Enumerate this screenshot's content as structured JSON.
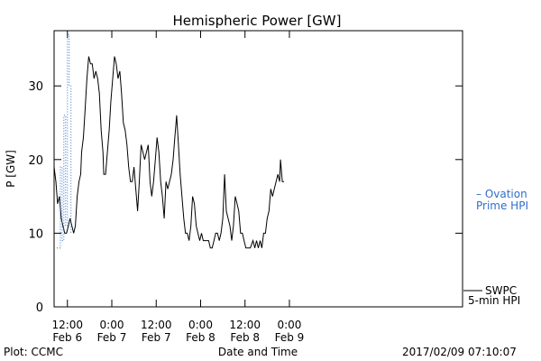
{
  "chart_data": {
    "type": "line",
    "title": "Hemispheric Power [GW]",
    "xlabel": "Date and Time",
    "ylabel": "P [GW]",
    "ylim": [
      0,
      37.5
    ],
    "xlim": [
      5.35,
      9.95
    ],
    "x_unit": "days (Feb 2017)",
    "y_ticks": [
      0,
      10,
      20,
      30
    ],
    "x_ticks": [
      {
        "x": 5.5,
        "time": "12:00",
        "date": "Feb 6"
      },
      {
        "x": 6.0,
        "time": "0:00",
        "date": "Feb 7"
      },
      {
        "x": 6.5,
        "time": "12:00",
        "date": "Feb 7"
      },
      {
        "x": 7.0,
        "time": "0:00",
        "date": "Feb 8"
      },
      {
        "x": 7.5,
        "time": "12:00",
        "date": "Feb 8"
      },
      {
        "x": 8.0,
        "time": "0:00",
        "date": "Feb 9"
      }
    ],
    "series": [
      {
        "name": "SWPC 5-min HPI",
        "color": "#000000",
        "style": "solid",
        "points": [
          [
            5.35,
            19
          ],
          [
            5.37,
            17
          ],
          [
            5.39,
            14
          ],
          [
            5.41,
            15
          ],
          [
            5.43,
            12
          ],
          [
            5.45,
            11
          ],
          [
            5.47,
            10
          ],
          [
            5.49,
            10
          ],
          [
            5.51,
            11
          ],
          [
            5.53,
            12
          ],
          [
            5.55,
            11
          ],
          [
            5.57,
            10
          ],
          [
            5.59,
            11
          ],
          [
            5.61,
            15
          ],
          [
            5.63,
            17
          ],
          [
            5.65,
            18
          ],
          [
            5.66,
            21
          ],
          [
            5.68,
            23
          ],
          [
            5.7,
            27
          ],
          [
            5.72,
            31
          ],
          [
            5.74,
            34
          ],
          [
            5.76,
            33
          ],
          [
            5.78,
            33
          ],
          [
            5.8,
            31
          ],
          [
            5.82,
            32
          ],
          [
            5.84,
            31
          ],
          [
            5.86,
            29
          ],
          [
            5.88,
            24
          ],
          [
            5.9,
            21
          ],
          [
            5.91,
            18
          ],
          [
            5.93,
            18
          ],
          [
            5.95,
            21
          ],
          [
            5.97,
            24
          ],
          [
            5.99,
            28
          ],
          [
            6.01,
            31
          ],
          [
            6.03,
            34
          ],
          [
            6.05,
            33
          ],
          [
            6.07,
            31
          ],
          [
            6.09,
            32
          ],
          [
            6.11,
            29
          ],
          [
            6.13,
            25
          ],
          [
            6.15,
            24
          ],
          [
            6.17,
            22
          ],
          [
            6.19,
            19
          ],
          [
            6.21,
            17
          ],
          [
            6.23,
            17
          ],
          [
            6.25,
            19
          ],
          [
            6.27,
            16
          ],
          [
            6.29,
            13
          ],
          [
            6.31,
            17
          ],
          [
            6.33,
            22
          ],
          [
            6.35,
            21
          ],
          [
            6.37,
            20
          ],
          [
            6.39,
            21
          ],
          [
            6.41,
            22
          ],
          [
            6.43,
            17
          ],
          [
            6.45,
            15
          ],
          [
            6.47,
            17
          ],
          [
            6.49,
            20
          ],
          [
            6.51,
            23
          ],
          [
            6.53,
            21
          ],
          [
            6.55,
            17
          ],
          [
            6.57,
            15
          ],
          [
            6.59,
            12
          ],
          [
            6.61,
            17
          ],
          [
            6.63,
            16
          ],
          [
            6.65,
            17
          ],
          [
            6.67,
            18
          ],
          [
            6.69,
            20
          ],
          [
            6.71,
            23
          ],
          [
            6.73,
            26
          ],
          [
            6.75,
            22
          ],
          [
            6.77,
            18
          ],
          [
            6.79,
            15
          ],
          [
            6.81,
            12
          ],
          [
            6.83,
            10
          ],
          [
            6.85,
            10
          ],
          [
            6.87,
            9
          ],
          [
            6.89,
            11
          ],
          [
            6.91,
            15
          ],
          [
            6.93,
            14
          ],
          [
            6.95,
            11
          ],
          [
            6.97,
            10
          ],
          [
            6.99,
            9
          ],
          [
            7.01,
            10
          ],
          [
            7.03,
            9
          ],
          [
            7.06,
            9
          ],
          [
            7.09,
            9
          ],
          [
            7.11,
            8
          ],
          [
            7.13,
            8
          ],
          [
            7.15,
            9
          ],
          [
            7.17,
            10
          ],
          [
            7.19,
            10
          ],
          [
            7.21,
            9
          ],
          [
            7.23,
            10
          ],
          [
            7.25,
            12
          ],
          [
            7.27,
            18
          ],
          [
            7.29,
            13
          ],
          [
            7.31,
            12
          ],
          [
            7.33,
            11
          ],
          [
            7.35,
            9
          ],
          [
            7.37,
            11
          ],
          [
            7.39,
            15
          ],
          [
            7.41,
            14
          ],
          [
            7.43,
            13
          ],
          [
            7.45,
            10
          ],
          [
            7.47,
            10
          ],
          [
            7.49,
            9
          ],
          [
            7.51,
            8
          ],
          [
            7.53,
            8
          ],
          [
            7.56,
            8
          ],
          [
            7.59,
            9
          ],
          [
            7.61,
            8
          ],
          [
            7.63,
            9
          ],
          [
            7.65,
            8
          ],
          [
            7.67,
            9
          ],
          [
            7.69,
            8
          ],
          [
            7.71,
            10
          ],
          [
            7.73,
            10
          ],
          [
            7.75,
            12
          ],
          [
            7.77,
            13
          ],
          [
            7.79,
            16
          ],
          [
            7.81,
            15
          ],
          [
            7.83,
            16
          ],
          [
            7.85,
            17
          ],
          [
            7.87,
            18
          ],
          [
            7.89,
            17
          ],
          [
            7.9,
            20
          ],
          [
            7.92,
            17
          ],
          [
            7.94,
            17
          ]
        ]
      },
      {
        "name": "Ovation Prime HPI",
        "color": "#2f6fc9",
        "style": "dotted",
        "points": [
          [
            5.38,
            8
          ],
          [
            5.42,
            8
          ],
          [
            5.42,
            19
          ],
          [
            5.44,
            19
          ],
          [
            5.44,
            9
          ],
          [
            5.46,
            9
          ],
          [
            5.46,
            26
          ],
          [
            5.48,
            26
          ],
          [
            5.48,
            11
          ],
          [
            5.5,
            11
          ],
          [
            5.5,
            37
          ],
          [
            5.52,
            37
          ],
          [
            5.52,
            30
          ],
          [
            5.54,
            30
          ],
          [
            5.54,
            10
          ]
        ]
      }
    ],
    "legend": [
      {
        "line1": "SWPC",
        "line2": "5-min HPI",
        "color": "#000000"
      },
      {
        "line1": "– Ovation",
        "line2": "Prime HPI",
        "color": "#2f6fc9"
      }
    ],
    "legend_placement": "right-outside",
    "grid": false
  },
  "footer": {
    "plot_credit": "Plot: CCMC",
    "timestamp": "2017/02/09 07:10:07"
  }
}
